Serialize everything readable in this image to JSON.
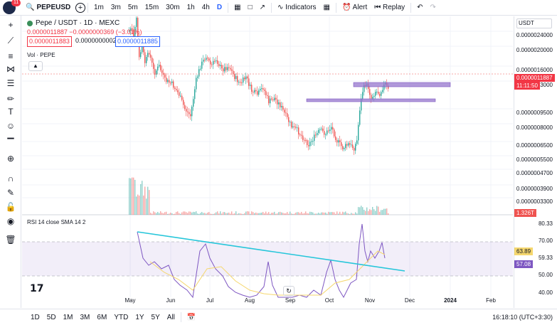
{
  "topbar": {
    "badge": "11",
    "symbol": "PEPEUSD",
    "add": "+",
    "intervals": [
      "1m",
      "3m",
      "5m",
      "15m",
      "30m",
      "1h",
      "4h",
      "D"
    ],
    "active_interval": "D",
    "indicators": "Indicators",
    "alert": "Alert",
    "replay": "Replay"
  },
  "legend": {
    "title": "Pepe / USDT · 1D · MEXC",
    "change": "0.0000011887  −0.0000000369 (−3.01%)",
    "sell_price": "0.0000011883",
    "spread": "0.0000000002",
    "buy_price": "0.0000011885",
    "volume_label": "Vol · PEPE",
    "rsi_label": "RSI 14 close SMA 14 2"
  },
  "price_axis": {
    "currency": "USDT",
    "labels": [
      "0.0000024000",
      "0.0000020000",
      "0.0000016000",
      "0.0000013000",
      "0.0000011887",
      "11:11:50",
      "0.0000009500",
      "0.0000008000",
      "0.0000006500",
      "0.0000005500",
      "0.0000004700",
      "0.0000003900",
      "0.0000003300",
      "1.326T"
    ],
    "rsi_labels": [
      "80.33",
      "70.00",
      "63.89",
      "59.33",
      "57.08",
      "50.00",
      "40.00"
    ]
  },
  "time_axis": [
    "May",
    "Jun",
    "Jul",
    "Aug",
    "Sep",
    "Oct",
    "Nov",
    "Dec",
    "2024",
    "Feb"
  ],
  "bottombar": {
    "ranges": [
      "1D",
      "5D",
      "1M",
      "3M",
      "6M",
      "YTD",
      "1Y",
      "5Y",
      "All"
    ],
    "clock": "16:18:10 (UTC+3:30)"
  },
  "colors": {
    "up": "#26a69a",
    "down": "#ef5350",
    "zone": "#9575cd",
    "trend": "#26c6da",
    "rsi": "#7e57c2",
    "sma": "#f5d76e"
  }
}
